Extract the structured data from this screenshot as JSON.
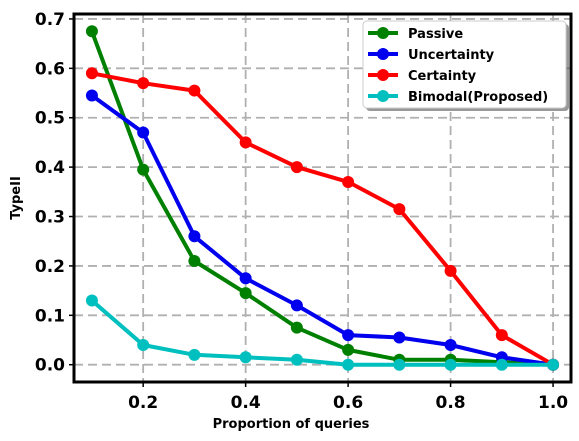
{
  "chart_data": {
    "type": "line",
    "xlabel": "Proportion of queries",
    "ylabel": "TypeII",
    "xlim": [
      0.065,
      1.035
    ],
    "ylim": [
      -0.035,
      0.71
    ],
    "xticks": [
      0.2,
      0.4,
      0.6,
      0.8,
      1.0
    ],
    "xtick_labels": [
      "0.2",
      "0.4",
      "0.6",
      "0.8",
      "1.0"
    ],
    "yticks": [
      0.0,
      0.1,
      0.2,
      0.3,
      0.4,
      0.5,
      0.6,
      0.7
    ],
    "ytick_labels": [
      "0.0",
      "0.1",
      "0.2",
      "0.3",
      "0.4",
      "0.5",
      "0.6",
      "0.7"
    ],
    "grid": true,
    "legend_position": "top-right",
    "x": [
      0.1,
      0.2,
      0.3,
      0.4,
      0.5,
      0.6,
      0.7,
      0.8,
      0.9,
      1.0
    ],
    "series": [
      {
        "name": "Passive",
        "color": "#008000",
        "values": [
          0.675,
          0.395,
          0.21,
          0.145,
          0.075,
          0.03,
          0.01,
          0.01,
          0.005,
          0.0
        ]
      },
      {
        "name": "Uncertainty",
        "color": "#0000ee",
        "values": [
          0.545,
          0.47,
          0.26,
          0.175,
          0.12,
          0.06,
          0.055,
          0.04,
          0.015,
          0.0
        ]
      },
      {
        "name": "Certainty",
        "color": "#ff0000",
        "values": [
          0.59,
          0.57,
          0.555,
          0.45,
          0.4,
          0.37,
          0.315,
          0.19,
          0.06,
          0.0
        ]
      },
      {
        "name": "Bimodal(Proposed)",
        "color": "#00bfbf",
        "values": [
          0.13,
          0.04,
          0.02,
          0.015,
          0.01,
          0.0,
          0.0,
          0.0,
          0.0,
          0.0
        ]
      }
    ]
  }
}
